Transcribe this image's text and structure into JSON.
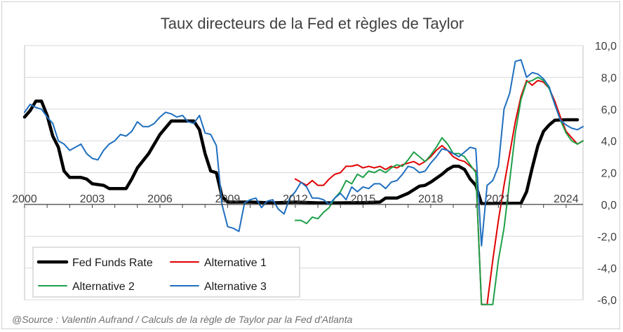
{
  "chart_data": {
    "type": "line",
    "title": "Taux directeurs de la Fed et règles de Taylor",
    "source": "@Source : Valentin Aufrand / Calculs de la règle de Taylor par la Fed d'Atlanta",
    "xlabel": "",
    "ylabel": "",
    "x_tick_labels": [
      "2000",
      "2003",
      "2006",
      "2009",
      "2012",
      "2015",
      "2018",
      "2021",
      "2024"
    ],
    "y_tick_labels": [
      "-6,0",
      "-4,0",
      "-2,0",
      "0,0",
      "2,0",
      "4,0",
      "6,0",
      "8,0",
      "10,0"
    ],
    "xlim": [
      2000.0,
      2024.75
    ],
    "ylim": [
      -6,
      10
    ],
    "y_axis_position": "right",
    "grid": "horizontal",
    "legend_position": "bottom-left",
    "series": [
      {
        "name": "Fed Funds Rate",
        "color": "#000000",
        "width": 4.5,
        "points": [
          [
            2000.0,
            5.5
          ],
          [
            2000.25,
            5.9
          ],
          [
            2000.5,
            6.5
          ],
          [
            2000.75,
            6.5
          ],
          [
            2001.0,
            5.6
          ],
          [
            2001.25,
            4.3
          ],
          [
            2001.5,
            3.6
          ],
          [
            2001.75,
            2.1
          ],
          [
            2002.0,
            1.7
          ],
          [
            2002.5,
            1.7
          ],
          [
            2002.75,
            1.6
          ],
          [
            2003.0,
            1.3
          ],
          [
            2003.5,
            1.2
          ],
          [
            2003.75,
            1.0
          ],
          [
            2004.5,
            1.0
          ],
          [
            2004.75,
            1.6
          ],
          [
            2005.0,
            2.3
          ],
          [
            2005.5,
            3.2
          ],
          [
            2006.0,
            4.4
          ],
          [
            2006.5,
            5.25
          ],
          [
            2007.0,
            5.25
          ],
          [
            2007.5,
            5.25
          ],
          [
            2007.75,
            4.7
          ],
          [
            2008.0,
            3.2
          ],
          [
            2008.25,
            2.1
          ],
          [
            2008.5,
            2.0
          ],
          [
            2008.75,
            0.5
          ],
          [
            2009.0,
            0.15
          ],
          [
            2010.0,
            0.15
          ],
          [
            2011.0,
            0.1
          ],
          [
            2012.0,
            0.15
          ],
          [
            2013.0,
            0.1
          ],
          [
            2014.0,
            0.1
          ],
          [
            2015.0,
            0.12
          ],
          [
            2015.75,
            0.15
          ],
          [
            2016.0,
            0.4
          ],
          [
            2016.5,
            0.4
          ],
          [
            2017.0,
            0.7
          ],
          [
            2017.5,
            1.15
          ],
          [
            2017.75,
            1.2
          ],
          [
            2018.0,
            1.4
          ],
          [
            2018.5,
            1.9
          ],
          [
            2018.75,
            2.2
          ],
          [
            2019.0,
            2.4
          ],
          [
            2019.25,
            2.4
          ],
          [
            2019.5,
            2.2
          ],
          [
            2019.75,
            1.6
          ],
          [
            2020.0,
            1.2
          ],
          [
            2020.25,
            0.05
          ],
          [
            2022.0,
            0.08
          ],
          [
            2022.25,
            0.8
          ],
          [
            2022.5,
            2.3
          ],
          [
            2022.75,
            3.7
          ],
          [
            2023.0,
            4.6
          ],
          [
            2023.25,
            5.0
          ],
          [
            2023.5,
            5.3
          ],
          [
            2024.0,
            5.33
          ],
          [
            2024.5,
            5.33
          ]
        ]
      },
      {
        "name": "Alternative 1",
        "color": "#e00000",
        "width": 2,
        "points": [
          [
            2012.0,
            1.6
          ],
          [
            2012.25,
            1.4
          ],
          [
            2012.5,
            1.2
          ],
          [
            2012.75,
            1.5
          ],
          [
            2013.0,
            1.2
          ],
          [
            2013.25,
            1.2
          ],
          [
            2013.5,
            1.6
          ],
          [
            2013.75,
            1.9
          ],
          [
            2014.0,
            2.0
          ],
          [
            2014.25,
            2.4
          ],
          [
            2014.5,
            2.4
          ],
          [
            2014.75,
            2.5
          ],
          [
            2015.0,
            2.3
          ],
          [
            2015.25,
            2.4
          ],
          [
            2015.5,
            2.3
          ],
          [
            2015.75,
            2.4
          ],
          [
            2016.0,
            2.2
          ],
          [
            2016.25,
            2.4
          ],
          [
            2016.5,
            2.3
          ],
          [
            2016.75,
            2.5
          ],
          [
            2017.0,
            2.6
          ],
          [
            2017.25,
            2.7
          ],
          [
            2017.5,
            2.5
          ],
          [
            2017.75,
            2.7
          ],
          [
            2018.0,
            3.0
          ],
          [
            2018.25,
            3.4
          ],
          [
            2018.5,
            3.7
          ],
          [
            2018.75,
            3.4
          ],
          [
            2019.0,
            3.0
          ],
          [
            2019.25,
            2.8
          ],
          [
            2019.5,
            2.7
          ],
          [
            2019.75,
            2.4
          ],
          [
            2020.0,
            2.1
          ],
          [
            2020.25,
            -6.3
          ],
          [
            2020.5,
            -6.3
          ],
          [
            2020.75,
            -3.5
          ],
          [
            2021.0,
            -1.0
          ],
          [
            2021.25,
            1.2
          ],
          [
            2021.5,
            3.2
          ],
          [
            2021.75,
            5.2
          ],
          [
            2022.0,
            6.8
          ],
          [
            2022.25,
            7.8
          ],
          [
            2022.5,
            7.5
          ],
          [
            2022.75,
            7.8
          ],
          [
            2023.0,
            7.7
          ],
          [
            2023.25,
            7.3
          ],
          [
            2023.5,
            6.5
          ],
          [
            2023.75,
            5.5
          ],
          [
            2024.0,
            4.6
          ],
          [
            2024.25,
            4.2
          ],
          [
            2024.5,
            3.8
          ],
          [
            2024.75,
            4.0
          ]
        ]
      },
      {
        "name": "Alternative 2",
        "color": "#1ea04a",
        "width": 2,
        "points": [
          [
            2012.0,
            -1.0
          ],
          [
            2012.25,
            -1.0
          ],
          [
            2012.5,
            -1.2
          ],
          [
            2012.75,
            -0.8
          ],
          [
            2013.0,
            -0.9
          ],
          [
            2013.25,
            -0.5
          ],
          [
            2013.5,
            -0.2
          ],
          [
            2013.75,
            0.4
          ],
          [
            2014.0,
            0.8
          ],
          [
            2014.25,
            1.5
          ],
          [
            2014.5,
            1.3
          ],
          [
            2014.75,
            1.9
          ],
          [
            2015.0,
            1.7
          ],
          [
            2015.25,
            2.1
          ],
          [
            2015.5,
            2.0
          ],
          [
            2015.75,
            2.2
          ],
          [
            2016.0,
            2.0
          ],
          [
            2016.25,
            2.3
          ],
          [
            2016.5,
            2.5
          ],
          [
            2016.75,
            2.4
          ],
          [
            2017.0,
            2.8
          ],
          [
            2017.25,
            3.3
          ],
          [
            2017.5,
            3.0
          ],
          [
            2017.75,
            2.7
          ],
          [
            2018.0,
            3.1
          ],
          [
            2018.25,
            3.6
          ],
          [
            2018.5,
            4.2
          ],
          [
            2018.75,
            3.8
          ],
          [
            2019.0,
            3.2
          ],
          [
            2019.25,
            3.2
          ],
          [
            2019.5,
            3.0
          ],
          [
            2019.75,
            2.5
          ],
          [
            2020.0,
            2.0
          ],
          [
            2020.25,
            -6.3
          ],
          [
            2020.75,
            -6.3
          ],
          [
            2021.0,
            -3.5
          ],
          [
            2021.25,
            -1.5
          ],
          [
            2021.5,
            1.5
          ],
          [
            2021.75,
            4.5
          ],
          [
            2022.0,
            6.6
          ],
          [
            2022.25,
            7.7
          ],
          [
            2022.5,
            7.8
          ],
          [
            2022.75,
            8.0
          ],
          [
            2023.0,
            7.8
          ],
          [
            2023.25,
            7.3
          ],
          [
            2023.5,
            6.3
          ],
          [
            2023.75,
            5.3
          ],
          [
            2024.0,
            4.5
          ],
          [
            2024.25,
            4.0
          ],
          [
            2024.5,
            3.8
          ],
          [
            2024.75,
            4.0
          ]
        ]
      },
      {
        "name": "Alternative 3",
        "color": "#1f6fbf",
        "width": 2,
        "points": [
          [
            2000.0,
            5.8
          ],
          [
            2000.25,
            6.3
          ],
          [
            2000.5,
            6.1
          ],
          [
            2000.75,
            6.0
          ],
          [
            2001.0,
            5.5
          ],
          [
            2001.25,
            5.1
          ],
          [
            2001.5,
            4.0
          ],
          [
            2001.75,
            3.8
          ],
          [
            2002.0,
            3.4
          ],
          [
            2002.25,
            3.6
          ],
          [
            2002.5,
            3.8
          ],
          [
            2002.75,
            3.2
          ],
          [
            2003.0,
            2.9
          ],
          [
            2003.25,
            2.8
          ],
          [
            2003.5,
            3.4
          ],
          [
            2003.75,
            3.8
          ],
          [
            2004.0,
            4.0
          ],
          [
            2004.25,
            4.4
          ],
          [
            2004.5,
            4.3
          ],
          [
            2004.75,
            4.6
          ],
          [
            2005.0,
            5.2
          ],
          [
            2005.25,
            4.9
          ],
          [
            2005.5,
            4.9
          ],
          [
            2005.75,
            5.1
          ],
          [
            2006.0,
            5.5
          ],
          [
            2006.25,
            5.8
          ],
          [
            2006.5,
            5.7
          ],
          [
            2006.75,
            5.5
          ],
          [
            2007.0,
            5.6
          ],
          [
            2007.25,
            5.2
          ],
          [
            2007.5,
            5.1
          ],
          [
            2007.75,
            5.6
          ],
          [
            2008.0,
            4.5
          ],
          [
            2008.25,
            4.4
          ],
          [
            2008.5,
            3.7
          ],
          [
            2008.75,
            0.0
          ],
          [
            2009.0,
            -1.4
          ],
          [
            2009.25,
            -1.5
          ],
          [
            2009.5,
            -1.7
          ],
          [
            2009.75,
            0.1
          ],
          [
            2010.0,
            0.3
          ],
          [
            2010.25,
            0.4
          ],
          [
            2010.5,
            -0.2
          ],
          [
            2010.75,
            0.2
          ],
          [
            2011.0,
            0.3
          ],
          [
            2011.25,
            -0.3
          ],
          [
            2011.5,
            -0.6
          ],
          [
            2011.75,
            0.4
          ],
          [
            2012.0,
            0.8
          ],
          [
            2012.25,
            1.4
          ],
          [
            2012.5,
            1.1
          ],
          [
            2012.75,
            0.4
          ],
          [
            2013.0,
            0.4
          ],
          [
            2013.25,
            0.3
          ],
          [
            2013.5,
            0.0
          ],
          [
            2013.75,
            0.4
          ],
          [
            2014.0,
            0.7
          ],
          [
            2014.25,
            0.3
          ],
          [
            2014.5,
            1.1
          ],
          [
            2014.75,
            0.8
          ],
          [
            2015.0,
            1.1
          ],
          [
            2015.25,
            1.0
          ],
          [
            2015.5,
            1.3
          ],
          [
            2015.75,
            1.3
          ],
          [
            2016.0,
            1.0
          ],
          [
            2016.25,
            1.4
          ],
          [
            2016.5,
            1.5
          ],
          [
            2016.75,
            1.9
          ],
          [
            2017.0,
            2.4
          ],
          [
            2017.25,
            2.3
          ],
          [
            2017.5,
            2.0
          ],
          [
            2017.75,
            2.1
          ],
          [
            2018.0,
            2.6
          ],
          [
            2018.25,
            3.0
          ],
          [
            2018.5,
            3.5
          ],
          [
            2018.75,
            3.4
          ],
          [
            2019.0,
            3.2
          ],
          [
            2019.25,
            3.0
          ],
          [
            2019.5,
            3.3
          ],
          [
            2019.75,
            3.6
          ],
          [
            2020.0,
            3.5
          ],
          [
            2020.25,
            -2.6
          ],
          [
            2020.5,
            1.2
          ],
          [
            2020.75,
            1.5
          ],
          [
            2021.0,
            2.4
          ],
          [
            2021.25,
            6.0
          ],
          [
            2021.5,
            7.0
          ],
          [
            2021.75,
            9.0
          ],
          [
            2022.0,
            9.1
          ],
          [
            2022.25,
            8.0
          ],
          [
            2022.5,
            8.3
          ],
          [
            2022.75,
            8.2
          ],
          [
            2023.0,
            7.9
          ],
          [
            2023.25,
            7.4
          ],
          [
            2023.5,
            6.3
          ],
          [
            2023.75,
            5.3
          ],
          [
            2024.0,
            5.0
          ],
          [
            2024.25,
            4.8
          ],
          [
            2024.5,
            4.7
          ],
          [
            2024.75,
            4.9
          ]
        ]
      }
    ]
  }
}
